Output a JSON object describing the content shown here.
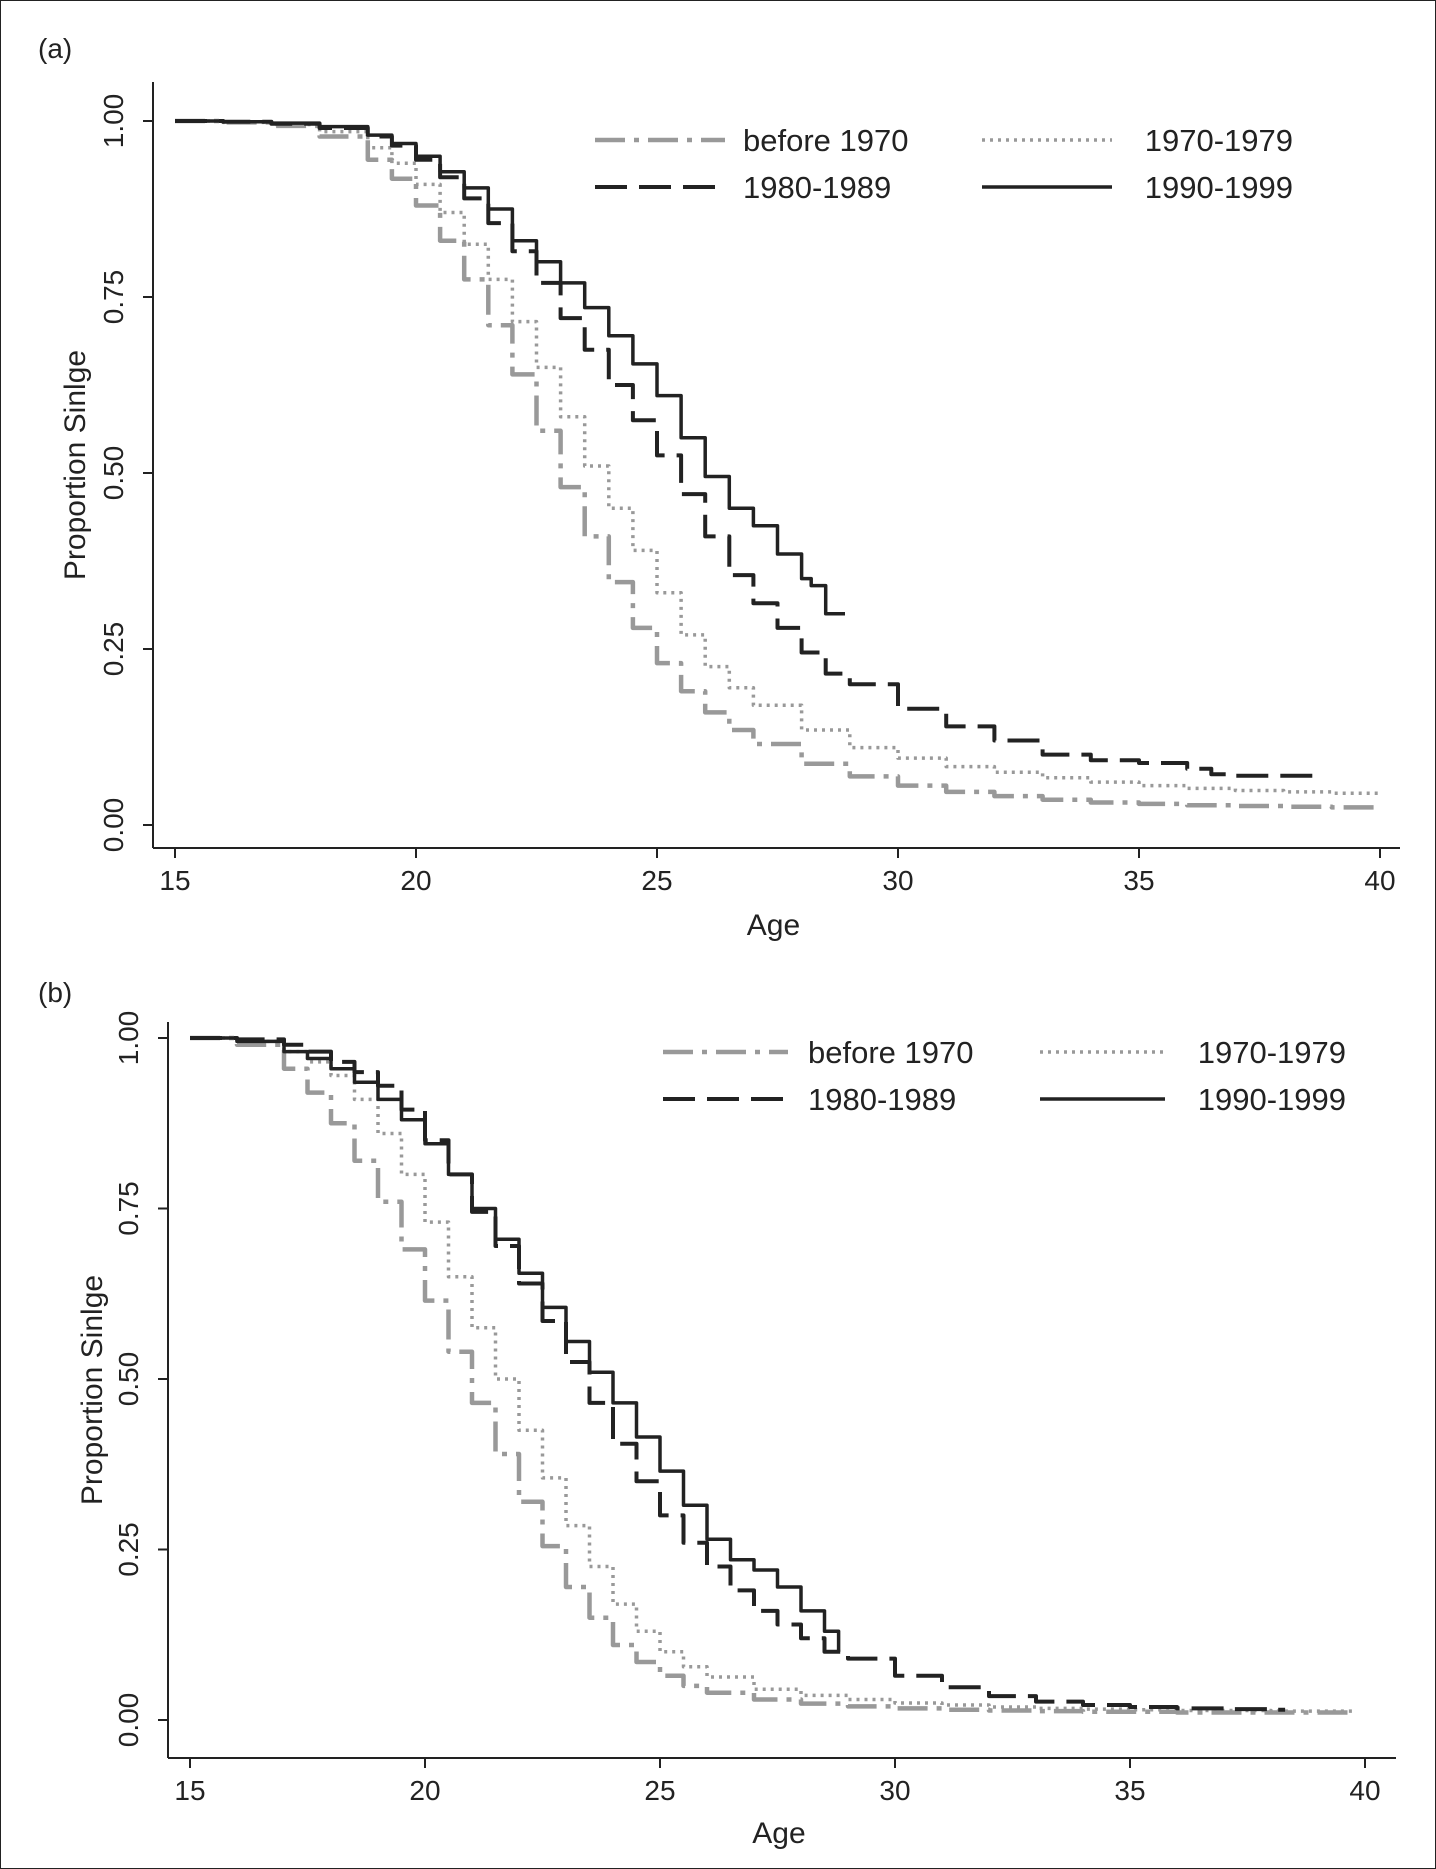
{
  "chart_data": [
    {
      "type": "line",
      "panel_label": "(a)",
      "xlabel": "Age",
      "ylabel": "Proportion Sinlge",
      "xlim": [
        15,
        40
      ],
      "ylim": [
        0,
        1
      ],
      "xticks": [
        "15",
        "20",
        "25",
        "30",
        "35",
        "40"
      ],
      "yticks": [
        "0.00",
        "0.25",
        "0.50",
        "0.75",
        "1.00"
      ],
      "grid": false,
      "legend_position": "top-right",
      "series": [
        {
          "name": "before 1970",
          "style": "dash-dot",
          "color": "#999999",
          "x": [
            15,
            16,
            17,
            18,
            19,
            19.5,
            20,
            20.5,
            21,
            21.5,
            22,
            22.5,
            23,
            23.5,
            24,
            24.5,
            25,
            25.5,
            26,
            26.5,
            27,
            28,
            29,
            30,
            31,
            32,
            33,
            34,
            35,
            36,
            37,
            38,
            39,
            40
          ],
          "y": [
            1.0,
            0.998,
            0.993,
            0.978,
            0.945,
            0.918,
            0.88,
            0.83,
            0.775,
            0.71,
            0.64,
            0.56,
            0.48,
            0.41,
            0.345,
            0.28,
            0.23,
            0.19,
            0.16,
            0.135,
            0.115,
            0.087,
            0.069,
            0.056,
            0.047,
            0.041,
            0.036,
            0.032,
            0.03,
            0.028,
            0.027,
            0.026,
            0.025,
            0.025
          ]
        },
        {
          "name": "1970-1979",
          "style": "dotted",
          "color": "#999999",
          "x": [
            15,
            16,
            17,
            18,
            19,
            19.5,
            20,
            20.5,
            21,
            21.5,
            22,
            22.5,
            23,
            23.5,
            24,
            24.5,
            25,
            25.5,
            26,
            26.5,
            27,
            28,
            29,
            30,
            31,
            32,
            33,
            34,
            35,
            36,
            37,
            38,
            39,
            40
          ],
          "y": [
            1.0,
            0.998,
            0.995,
            0.985,
            0.962,
            0.94,
            0.91,
            0.87,
            0.825,
            0.775,
            0.715,
            0.65,
            0.58,
            0.51,
            0.45,
            0.39,
            0.33,
            0.27,
            0.225,
            0.195,
            0.17,
            0.135,
            0.11,
            0.095,
            0.083,
            0.075,
            0.067,
            0.061,
            0.056,
            0.052,
            0.049,
            0.047,
            0.045,
            0.043
          ]
        },
        {
          "name": "1980-1989",
          "style": "long-dash",
          "color": "#222222",
          "x": [
            15,
            16,
            17,
            18,
            19,
            19.5,
            20,
            20.5,
            21,
            21.5,
            22,
            22.5,
            23,
            23.5,
            24,
            24.5,
            25,
            25.5,
            26,
            26.5,
            27,
            27.5,
            28,
            28.5,
            29,
            30,
            31,
            32,
            33,
            34,
            35,
            36,
            36.5,
            37,
            38,
            38.6
          ],
          "y": [
            1.0,
            0.999,
            0.996,
            0.99,
            0.978,
            0.965,
            0.945,
            0.92,
            0.89,
            0.855,
            0.815,
            0.77,
            0.72,
            0.675,
            0.625,
            0.575,
            0.525,
            0.47,
            0.41,
            0.355,
            0.315,
            0.28,
            0.245,
            0.215,
            0.2,
            0.165,
            0.14,
            0.12,
            0.1,
            0.092,
            0.088,
            0.08,
            0.072,
            0.07,
            0.07,
            0.07
          ]
        },
        {
          "name": "1990-1999",
          "style": "solid",
          "color": "#222222",
          "x": [
            15,
            16,
            17,
            18,
            19,
            19.5,
            20,
            20.5,
            21,
            21.5,
            22,
            22.5,
            23,
            23.5,
            24,
            24.5,
            25,
            25.5,
            26,
            26.5,
            27,
            27.5,
            28,
            28.2,
            28.5,
            28.9
          ],
          "y": [
            1.0,
            0.999,
            0.997,
            0.992,
            0.98,
            0.968,
            0.95,
            0.928,
            0.905,
            0.875,
            0.83,
            0.8,
            0.77,
            0.735,
            0.695,
            0.655,
            0.61,
            0.55,
            0.495,
            0.45,
            0.425,
            0.385,
            0.35,
            0.34,
            0.3,
            0.3
          ]
        }
      ]
    },
    {
      "type": "line",
      "panel_label": "(b)",
      "xlabel": "Age",
      "ylabel": "Proportion Sinlge",
      "xlim": [
        15,
        40
      ],
      "ylim": [
        0,
        1
      ],
      "xticks": [
        "15",
        "20",
        "25",
        "30",
        "35",
        "40"
      ],
      "yticks": [
        "0.00",
        "0.25",
        "0.50",
        "0.75",
        "1.00"
      ],
      "grid": false,
      "legend_position": "top-right",
      "series": [
        {
          "name": "before 1970",
          "style": "dash-dot",
          "color": "#999999",
          "x": [
            15,
            16,
            17,
            17.5,
            18,
            18.5,
            19,
            19.5,
            20,
            20.5,
            21,
            21.5,
            22,
            22.5,
            23,
            23.5,
            24,
            24.5,
            25,
            25.5,
            26,
            27,
            28,
            29,
            30,
            31,
            32,
            33,
            34,
            35,
            36,
            37,
            38,
            39,
            39.8
          ],
          "y": [
            1.0,
            0.99,
            0.955,
            0.92,
            0.875,
            0.82,
            0.76,
            0.69,
            0.615,
            0.54,
            0.465,
            0.39,
            0.32,
            0.255,
            0.195,
            0.15,
            0.11,
            0.085,
            0.065,
            0.05,
            0.04,
            0.03,
            0.024,
            0.02,
            0.017,
            0.015,
            0.014,
            0.013,
            0.012,
            0.012,
            0.011,
            0.011,
            0.011,
            0.011,
            0.011
          ]
        },
        {
          "name": "1970-1979",
          "style": "dotted",
          "color": "#999999",
          "x": [
            15,
            16,
            17,
            17.5,
            18,
            18.5,
            19,
            19.5,
            20,
            20.5,
            21,
            21.5,
            22,
            22.5,
            23,
            23.5,
            24,
            24.5,
            25,
            25.5,
            26,
            27,
            28,
            29,
            30,
            31,
            32,
            33,
            34,
            35,
            36,
            37,
            38,
            39,
            39.8
          ],
          "y": [
            1.0,
            0.995,
            0.98,
            0.965,
            0.945,
            0.91,
            0.86,
            0.8,
            0.73,
            0.65,
            0.575,
            0.5,
            0.425,
            0.355,
            0.285,
            0.225,
            0.17,
            0.13,
            0.1,
            0.078,
            0.063,
            0.045,
            0.036,
            0.03,
            0.025,
            0.022,
            0.019,
            0.017,
            0.016,
            0.015,
            0.014,
            0.014,
            0.013,
            0.013,
            0.013
          ]
        },
        {
          "name": "1980-1989",
          "style": "long-dash",
          "color": "#222222",
          "x": [
            15,
            16,
            17,
            17.5,
            18,
            18.5,
            19,
            19.5,
            20,
            20.5,
            21,
            21.5,
            22,
            22.5,
            23,
            23.5,
            24,
            24.5,
            25,
            25.5,
            26,
            26.5,
            27,
            27.5,
            28,
            28.5,
            29,
            30,
            31,
            32,
            33,
            34,
            35,
            36,
            37,
            38,
            38.3
          ],
          "y": [
            1.0,
            0.998,
            0.99,
            0.98,
            0.965,
            0.95,
            0.93,
            0.895,
            0.85,
            0.8,
            0.745,
            0.695,
            0.64,
            0.585,
            0.525,
            0.465,
            0.405,
            0.35,
            0.3,
            0.26,
            0.225,
            0.19,
            0.16,
            0.14,
            0.12,
            0.1,
            0.09,
            0.065,
            0.048,
            0.035,
            0.027,
            0.022,
            0.019,
            0.017,
            0.016,
            0.015,
            0.015
          ]
        },
        {
          "name": "1990-1999",
          "style": "solid",
          "color": "#222222",
          "x": [
            15,
            16,
            17,
            17.5,
            18,
            18.5,
            19,
            19.5,
            20,
            20.5,
            21,
            21.5,
            22,
            22.5,
            23,
            23.5,
            24,
            24.5,
            25,
            25.5,
            26,
            26.5,
            27,
            27.5,
            28,
            28.5,
            28.8
          ],
          "y": [
            1.0,
            0.995,
            0.98,
            0.97,
            0.955,
            0.935,
            0.91,
            0.88,
            0.845,
            0.8,
            0.75,
            0.705,
            0.655,
            0.605,
            0.555,
            0.51,
            0.465,
            0.415,
            0.365,
            0.315,
            0.265,
            0.235,
            0.22,
            0.195,
            0.16,
            0.13,
            0.1
          ]
        }
      ]
    }
  ]
}
